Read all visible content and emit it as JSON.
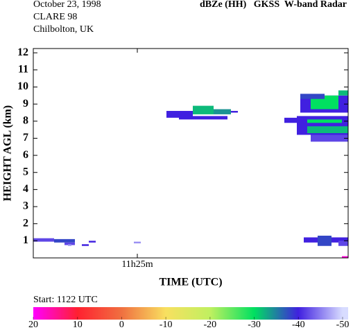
{
  "chart_data": {
    "type": "heatmap",
    "title": "dBZe (HH)   GKSS  W-band Radar",
    "date": "October 23, 1998",
    "campaign": "CLARE 98",
    "site": "Chilbolton, UK",
    "start_label": "Start: 1122 UTC",
    "xlabel": "TIME (UTC)",
    "ylabel": "HEIGHT AGL (km)",
    "xlim": [
      682,
      691.08
    ],
    "xticks": [
      {
        "value": 685,
        "label": "11h25m"
      }
    ],
    "ylim": [
      0,
      12.25
    ],
    "yticks": [
      1,
      2,
      3,
      4,
      5,
      6,
      7,
      8,
      9,
      10,
      11,
      12
    ],
    "colorbar": {
      "lim": [
        20,
        -50
      ],
      "ticks": [
        20,
        10,
        0,
        -10,
        -20,
        -30,
        -40,
        -50
      ],
      "values": [
        20,
        10,
        0,
        -10,
        -20,
        -30,
        -40,
        -50
      ],
      "colors": [
        "#ff00ff",
        "#ff2030",
        "#f07040",
        "#f8e060",
        "#c0f060",
        "#00e060",
        "#4020e0",
        "#d8dcff"
      ]
    },
    "cells": [
      {
        "t": [
          682.0,
          682.6
        ],
        "h": [
          0.95,
          1.15
        ],
        "dbz": -42
      },
      {
        "t": [
          682.6,
          683.2
        ],
        "h": [
          0.9,
          1.1
        ],
        "dbz": -38
      },
      {
        "t": [
          682.9,
          683.2
        ],
        "h": [
          0.75,
          0.9
        ],
        "dbz": -42
      },
      {
        "t": [
          683.0,
          683.1
        ],
        "h": [
          0.7,
          0.8
        ],
        "dbz": -46
      },
      {
        "t": [
          683.4,
          683.6
        ],
        "h": [
          0.7,
          0.8
        ],
        "dbz": -40
      },
      {
        "t": [
          683.6,
          683.8
        ],
        "h": [
          0.9,
          1.0
        ],
        "dbz": -40
      },
      {
        "t": [
          684.9,
          685.1
        ],
        "h": [
          0.85,
          0.95
        ],
        "dbz": -46
      },
      {
        "t": [
          685.84,
          686.6
        ],
        "h": [
          8.2,
          8.6
        ],
        "dbz": -40
      },
      {
        "t": [
          686.2,
          687.6
        ],
        "h": [
          8.1,
          8.3
        ],
        "dbz": -40
      },
      {
        "t": [
          686.6,
          687.2
        ],
        "h": [
          8.4,
          8.9
        ],
        "dbz": -32
      },
      {
        "t": [
          687.2,
          687.7
        ],
        "h": [
          8.4,
          8.7
        ],
        "dbz": -34
      },
      {
        "t": [
          687.7,
          687.9
        ],
        "h": [
          8.5,
          8.6
        ],
        "dbz": -40
      },
      {
        "t": [
          689.7,
          691.08
        ],
        "h": [
          8.5,
          9.5
        ],
        "dbz": -40
      },
      {
        "t": [
          690.0,
          690.8
        ],
        "h": [
          8.7,
          9.5
        ],
        "dbz": -30
      },
      {
        "t": [
          690.8,
          691.08
        ],
        "h": [
          9.5,
          9.8
        ],
        "dbz": -32
      },
      {
        "t": [
          689.7,
          690.4
        ],
        "h": [
          9.3,
          9.6
        ],
        "dbz": -38
      },
      {
        "t": [
          689.24,
          689.6
        ],
        "h": [
          7.9,
          8.2
        ],
        "dbz": -40
      },
      {
        "t": [
          689.6,
          691.08
        ],
        "h": [
          7.2,
          8.3
        ],
        "dbz": -40
      },
      {
        "t": [
          689.9,
          691.08
        ],
        "h": [
          7.3,
          7.7
        ],
        "dbz": -32
      },
      {
        "t": [
          689.9,
          690.9
        ],
        "h": [
          7.9,
          8.1
        ],
        "dbz": -30
      },
      {
        "t": [
          690.0,
          691.08
        ],
        "h": [
          6.8,
          7.2
        ],
        "dbz": -42
      },
      {
        "t": [
          689.8,
          691.08
        ],
        "h": [
          0.9,
          1.2
        ],
        "dbz": -40
      },
      {
        "t": [
          690.2,
          690.6
        ],
        "h": [
          0.7,
          1.3
        ],
        "dbz": -38
      },
      {
        "t": [
          690.8,
          691.08
        ],
        "h": [
          0.7,
          1.0
        ],
        "dbz": -42
      },
      {
        "t": [
          690.9,
          691.08
        ],
        "h": [
          0.0,
          0.1
        ],
        "dbz": 18
      }
    ]
  }
}
